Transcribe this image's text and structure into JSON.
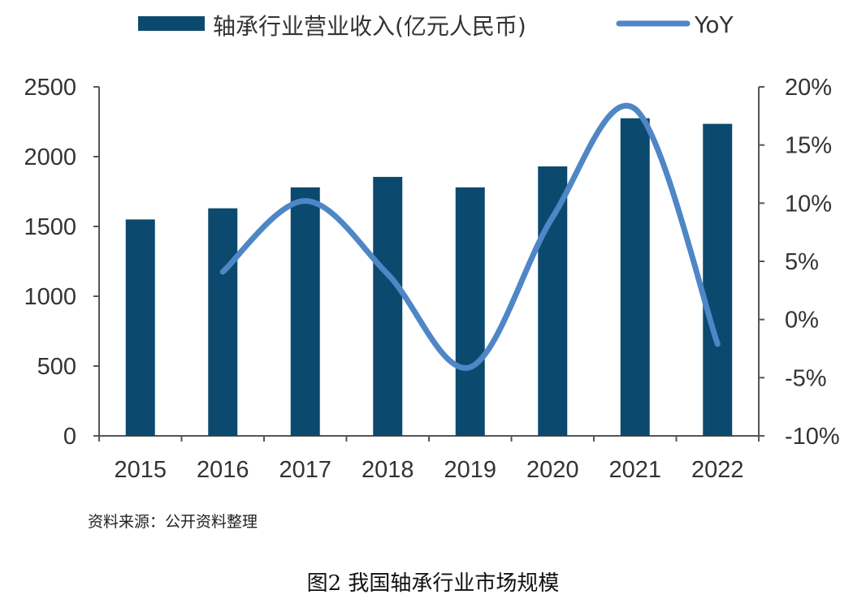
{
  "chart_data": {
    "type": "bar+line",
    "categories": [
      "2015",
      "2016",
      "2017",
      "2018",
      "2019",
      "2020",
      "2021",
      "2022"
    ],
    "series": [
      {
        "name": "轴承行业营业收入(亿元人民币)",
        "type": "bar",
        "axis": "left",
        "color": "#0b4a6e",
        "values": [
          1550,
          1630,
          1780,
          1855,
          1780,
          1930,
          2275,
          2235
        ]
      },
      {
        "name": "YoY",
        "type": "line",
        "axis": "right",
        "color": "#4f86c6",
        "values": [
          null,
          4.1,
          10.2,
          3.9,
          -4.1,
          8.8,
          18.1,
          -2.1
        ]
      }
    ],
    "y_left": {
      "min": 0,
      "max": 2500,
      "ticks": [
        0,
        500,
        1000,
        1500,
        2000,
        2500
      ]
    },
    "y_right": {
      "min": -10,
      "max": 20,
      "ticks": [
        "-10%",
        "-5%",
        "0%",
        "5%",
        "10%",
        "15%",
        "20%"
      ],
      "tick_values": [
        -10,
        -5,
        0,
        5,
        10,
        15,
        20
      ]
    },
    "legend_position": "top",
    "grid": false
  },
  "source_note": "资料来源：公开资料整理",
  "caption": "图2  我国轴承行业市场规模"
}
